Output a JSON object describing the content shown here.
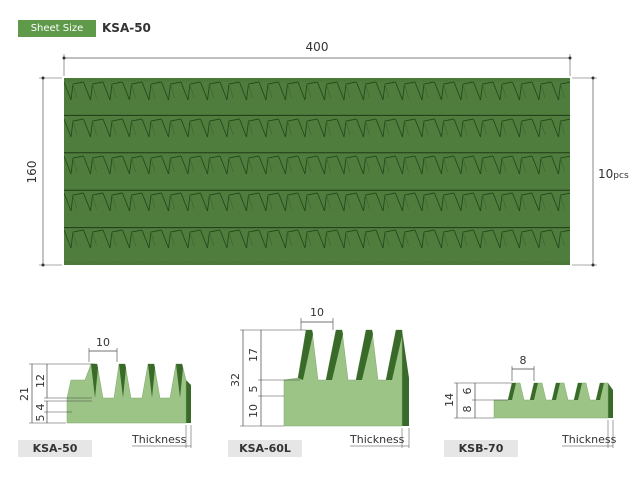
{
  "header": {
    "badge_label": "Sheet Size",
    "model": "KSA-50"
  },
  "sheet": {
    "width_label": "400",
    "height_label": "160",
    "quantity_number": "10",
    "quantity_unit": "pcs",
    "strip_count": 5,
    "teeth_per_strip": 26
  },
  "profiles": [
    {
      "name": "KSA-50",
      "dims": {
        "pitch": "10",
        "total": "21",
        "tooth": "12",
        "mid": "4",
        "base": "5"
      },
      "thickness_label": "Thickness",
      "teeth": 4
    },
    {
      "name": "KSA-60L",
      "dims": {
        "pitch": "10",
        "total": "32",
        "tooth": "17",
        "mid": "5",
        "base": "10"
      },
      "thickness_label": "Thickness",
      "teeth": 4
    },
    {
      "name": "KSB-70",
      "dims": {
        "pitch": "8",
        "total": "14",
        "tooth": "6",
        "base": "8"
      },
      "thickness_label": "Thickness",
      "teeth": 5
    }
  ],
  "colors": {
    "badge": "#5e9a4a",
    "strip": "#4f7d3d",
    "strip_dark": "#2f5424",
    "profile_face": "#9cc487",
    "profile_side": "#3a6a2a",
    "label_bar": "#e6e6e6"
  }
}
